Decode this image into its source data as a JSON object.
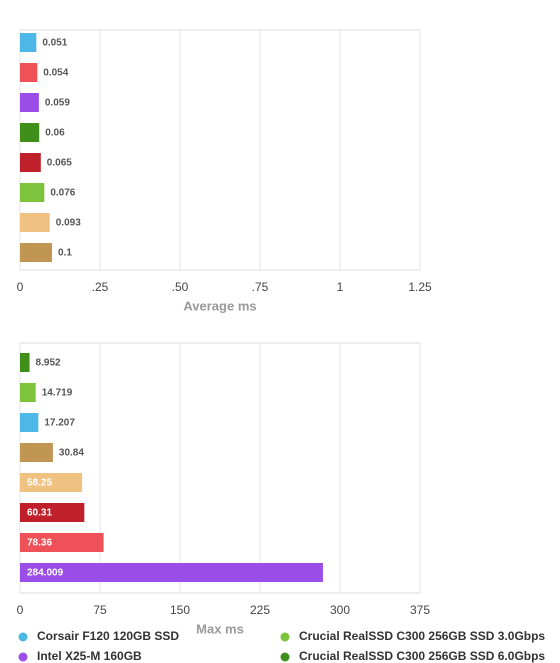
{
  "chart_data": [
    {
      "type": "bar",
      "orientation": "horizontal",
      "x_label": "Average ms",
      "values": [
        0.051,
        0.054,
        0.059,
        0.06,
        0.065,
        0.076,
        0.093,
        0.1
      ],
      "colors": [
        "#4db8e8",
        "#ee5258",
        "#9b4de8",
        "#3f8f1a",
        "#c0202a",
        "#7dc43c",
        "#efc282",
        "#c09652"
      ],
      "xlim": [
        0,
        1.25
      ],
      "xticks": [
        0,
        {
          "value": 0.25,
          "label": ".25"
        },
        {
          "value": 0.5,
          "label": ".50"
        },
        {
          "value": 0.75,
          "label": ".75"
        },
        1,
        1.25
      ],
      "grid": true
    },
    {
      "type": "bar",
      "orientation": "horizontal",
      "x_label": "Max ms",
      "values": [
        8.952,
        14.719,
        17.207,
        30.84,
        58.25,
        60.31,
        78.36,
        284.009
      ],
      "colors": [
        "#3f8f1a",
        "#7dc43c",
        "#4db8e8",
        "#c09652",
        "#efc282",
        "#c0202a",
        "#ee5258",
        "#9b4de8"
      ],
      "xlim": [
        0,
        375
      ],
      "xticks": [
        0,
        75,
        150,
        225,
        300,
        375
      ],
      "grid": true
    }
  ],
  "legend": [
    {
      "name": "Corsair F120 120GB SSD",
      "color": "#4db8e8"
    },
    {
      "name": "Crucial RealSSD C300 256GB SSD 3.0Gbps",
      "color": "#7dc43c"
    },
    {
      "name": "Intel X25-M 160GB",
      "color": "#9b4de8"
    },
    {
      "name": "Crucial RealSSD C300 256GB SSD 6.0Gbps",
      "color": "#3f8f1a"
    }
  ]
}
